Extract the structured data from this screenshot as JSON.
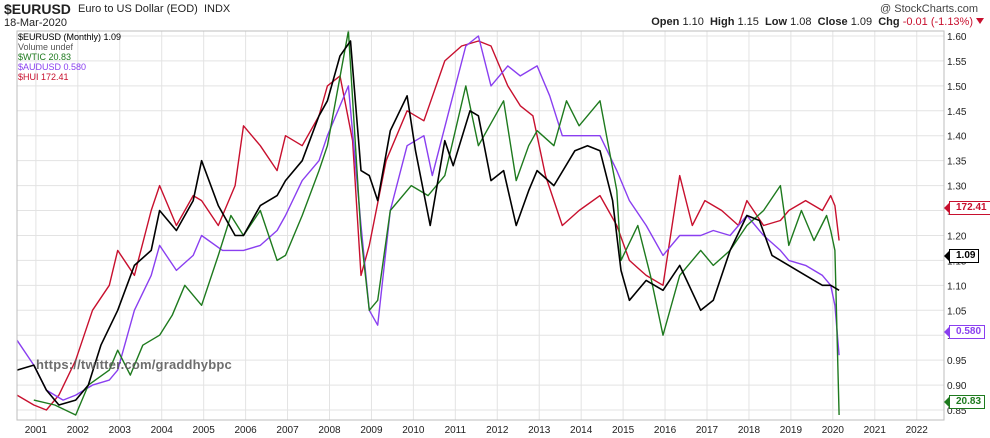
{
  "header": {
    "symbol": "$EURUSD",
    "description": "Euro to US Dollar (EOD)",
    "exchange": "INDX",
    "date": "18-Mar-2020",
    "brand": "@ StockCharts.com",
    "open_label": "Open",
    "open_value": "1.10",
    "high_label": "High",
    "high_value": "1.15",
    "low_label": "Low",
    "low_value": "1.08",
    "close_label": "Close",
    "close_value": "1.09",
    "chg_label": "Chg",
    "chg_value": "-0.01 (-1.13%)"
  },
  "legend": {
    "main": "$EURUSD (Monthly) 1.09",
    "volume": "Volume undef",
    "wtic": "$WTIC 20.83",
    "audusd": "$AUDUSD 0.580",
    "hui": "$HUI 172.41"
  },
  "watermark": "https://twitter.com/graddhybpc",
  "end_tags": {
    "hui": "172.41",
    "eurusd": "1.09",
    "audusd": "0.580",
    "wtic": "20.83"
  },
  "colors": {
    "eurusd": "#000000",
    "wtic": "#1e7a1e",
    "audusd": "#8a3ff0",
    "hui": "#c8102e",
    "grid": "#e3e3e3"
  },
  "chart_data": {
    "type": "line",
    "title": "$EURUSD Euro to US Dollar (EOD) INDX",
    "xlabel": "",
    "ylabel": "",
    "x_ticks": [
      "2001",
      "2002",
      "2003",
      "2004",
      "2005",
      "2006",
      "2007",
      "2008",
      "2009",
      "2010",
      "2011",
      "2012",
      "2013",
      "2014",
      "2015",
      "2016",
      "2017",
      "2018",
      "2019",
      "2020",
      "2021",
      "2022"
    ],
    "y_ticks": [
      0.85,
      0.9,
      0.95,
      1.0,
      1.05,
      1.1,
      1.15,
      1.2,
      1.25,
      1.3,
      1.35,
      1.4,
      1.45,
      1.5,
      1.55,
      1.6
    ],
    "ylim": [
      0.83,
      1.61
    ],
    "xlim": [
      2000.6,
      2022.7
    ],
    "grid": true,
    "series": [
      {
        "name": "$EURUSD (Monthly) 1.09",
        "key": "eurusd",
        "points": [
          [
            2000.6,
            0.93
          ],
          [
            2001.0,
            0.94
          ],
          [
            2001.3,
            0.89
          ],
          [
            2001.6,
            0.86
          ],
          [
            2002.0,
            0.87
          ],
          [
            2002.3,
            0.9
          ],
          [
            2002.6,
            0.98
          ],
          [
            2003.0,
            1.05
          ],
          [
            2003.4,
            1.14
          ],
          [
            2003.8,
            1.17
          ],
          [
            2004.0,
            1.25
          ],
          [
            2004.4,
            1.21
          ],
          [
            2004.8,
            1.27
          ],
          [
            2005.0,
            1.35
          ],
          [
            2005.4,
            1.26
          ],
          [
            2005.8,
            1.2
          ],
          [
            2006.0,
            1.2
          ],
          [
            2006.4,
            1.26
          ],
          [
            2006.8,
            1.28
          ],
          [
            2007.0,
            1.31
          ],
          [
            2007.4,
            1.35
          ],
          [
            2007.8,
            1.44
          ],
          [
            2008.0,
            1.47
          ],
          [
            2008.3,
            1.56
          ],
          [
            2008.55,
            1.59
          ],
          [
            2008.8,
            1.33
          ],
          [
            2009.0,
            1.32
          ],
          [
            2009.2,
            1.27
          ],
          [
            2009.5,
            1.41
          ],
          [
            2009.9,
            1.48
          ],
          [
            2010.1,
            1.37
          ],
          [
            2010.45,
            1.22
          ],
          [
            2010.8,
            1.39
          ],
          [
            2011.0,
            1.34
          ],
          [
            2011.4,
            1.45
          ],
          [
            2011.6,
            1.44
          ],
          [
            2011.9,
            1.31
          ],
          [
            2012.2,
            1.33
          ],
          [
            2012.5,
            1.22
          ],
          [
            2012.8,
            1.29
          ],
          [
            2013.0,
            1.33
          ],
          [
            2013.4,
            1.3
          ],
          [
            2013.9,
            1.37
          ],
          [
            2014.2,
            1.38
          ],
          [
            2014.5,
            1.37
          ],
          [
            2014.8,
            1.27
          ],
          [
            2015.0,
            1.13
          ],
          [
            2015.2,
            1.07
          ],
          [
            2015.6,
            1.11
          ],
          [
            2016.0,
            1.09
          ],
          [
            2016.4,
            1.14
          ],
          [
            2016.9,
            1.05
          ],
          [
            2017.2,
            1.07
          ],
          [
            2017.6,
            1.17
          ],
          [
            2018.0,
            1.24
          ],
          [
            2018.3,
            1.23
          ],
          [
            2018.6,
            1.16
          ],
          [
            2019.0,
            1.14
          ],
          [
            2019.4,
            1.12
          ],
          [
            2019.8,
            1.1
          ],
          [
            2020.0,
            1.1
          ],
          [
            2020.2,
            1.09
          ]
        ]
      },
      {
        "name": "$WTIC 20.83",
        "key": "wtic",
        "points": [
          [
            2001.0,
            0.87
          ],
          [
            2001.5,
            0.86
          ],
          [
            2002.0,
            0.84
          ],
          [
            2002.3,
            0.9
          ],
          [
            2002.8,
            0.93
          ],
          [
            2003.0,
            0.97
          ],
          [
            2003.3,
            0.92
          ],
          [
            2003.6,
            0.98
          ],
          [
            2004.0,
            1.0
          ],
          [
            2004.3,
            1.04
          ],
          [
            2004.6,
            1.1
          ],
          [
            2005.0,
            1.06
          ],
          [
            2005.4,
            1.16
          ],
          [
            2005.7,
            1.24
          ],
          [
            2006.0,
            1.2
          ],
          [
            2006.4,
            1.25
          ],
          [
            2006.8,
            1.15
          ],
          [
            2007.0,
            1.16
          ],
          [
            2007.4,
            1.24
          ],
          [
            2007.8,
            1.33
          ],
          [
            2008.0,
            1.38
          ],
          [
            2008.5,
            1.61
          ],
          [
            2008.8,
            1.2
          ],
          [
            2009.0,
            1.05
          ],
          [
            2009.2,
            1.07
          ],
          [
            2009.5,
            1.25
          ],
          [
            2010.0,
            1.3
          ],
          [
            2010.4,
            1.28
          ],
          [
            2010.8,
            1.32
          ],
          [
            2011.3,
            1.5
          ],
          [
            2011.6,
            1.38
          ],
          [
            2012.0,
            1.44
          ],
          [
            2012.2,
            1.47
          ],
          [
            2012.5,
            1.31
          ],
          [
            2012.8,
            1.38
          ],
          [
            2013.0,
            1.41
          ],
          [
            2013.4,
            1.38
          ],
          [
            2013.7,
            1.47
          ],
          [
            2014.0,
            1.42
          ],
          [
            2014.5,
            1.47
          ],
          [
            2014.9,
            1.29
          ],
          [
            2015.0,
            1.15
          ],
          [
            2015.4,
            1.22
          ],
          [
            2015.7,
            1.12
          ],
          [
            2016.0,
            1.0
          ],
          [
            2016.4,
            1.12
          ],
          [
            2016.9,
            1.17
          ],
          [
            2017.2,
            1.14
          ],
          [
            2017.6,
            1.17
          ],
          [
            2018.0,
            1.22
          ],
          [
            2018.4,
            1.25
          ],
          [
            2018.8,
            1.3
          ],
          [
            2019.0,
            1.18
          ],
          [
            2019.3,
            1.25
          ],
          [
            2019.6,
            1.19
          ],
          [
            2019.9,
            1.24
          ],
          [
            2020.0,
            1.21
          ],
          [
            2020.1,
            1.17
          ],
          [
            2020.2,
            0.84
          ]
        ]
      },
      {
        "name": "$AUDUSD 0.580",
        "key": "audusd",
        "points": [
          [
            2000.6,
            0.99
          ],
          [
            2001.0,
            0.94
          ],
          [
            2001.3,
            0.89
          ],
          [
            2001.7,
            0.87
          ],
          [
            2002.0,
            0.88
          ],
          [
            2002.4,
            0.9
          ],
          [
            2002.8,
            0.91
          ],
          [
            2003.0,
            0.93
          ],
          [
            2003.4,
            1.05
          ],
          [
            2003.8,
            1.12
          ],
          [
            2004.0,
            1.18
          ],
          [
            2004.4,
            1.13
          ],
          [
            2004.8,
            1.16
          ],
          [
            2005.0,
            1.2
          ],
          [
            2005.5,
            1.17
          ],
          [
            2006.0,
            1.17
          ],
          [
            2006.4,
            1.18
          ],
          [
            2006.8,
            1.21
          ],
          [
            2007.0,
            1.24
          ],
          [
            2007.4,
            1.31
          ],
          [
            2007.8,
            1.35
          ],
          [
            2008.0,
            1.4
          ],
          [
            2008.5,
            1.5
          ],
          [
            2008.8,
            1.22
          ],
          [
            2009.0,
            1.05
          ],
          [
            2009.2,
            1.02
          ],
          [
            2009.5,
            1.25
          ],
          [
            2009.9,
            1.38
          ],
          [
            2010.3,
            1.4
          ],
          [
            2010.5,
            1.32
          ],
          [
            2010.9,
            1.45
          ],
          [
            2011.3,
            1.58
          ],
          [
            2011.6,
            1.6
          ],
          [
            2011.9,
            1.5
          ],
          [
            2012.3,
            1.54
          ],
          [
            2012.6,
            1.52
          ],
          [
            2013.0,
            1.54
          ],
          [
            2013.3,
            1.48
          ],
          [
            2013.6,
            1.4
          ],
          [
            2014.0,
            1.4
          ],
          [
            2014.5,
            1.4
          ],
          [
            2014.9,
            1.33
          ],
          [
            2015.2,
            1.27
          ],
          [
            2015.6,
            1.22
          ],
          [
            2016.0,
            1.16
          ],
          [
            2016.4,
            1.2
          ],
          [
            2016.9,
            1.2
          ],
          [
            2017.2,
            1.21
          ],
          [
            2017.6,
            1.2
          ],
          [
            2018.0,
            1.24
          ],
          [
            2018.4,
            1.2
          ],
          [
            2018.8,
            1.17
          ],
          [
            2019.0,
            1.15
          ],
          [
            2019.4,
            1.14
          ],
          [
            2019.8,
            1.12
          ],
          [
            2020.0,
            1.1
          ],
          [
            2020.1,
            1.06
          ],
          [
            2020.2,
            0.96
          ]
        ]
      },
      {
        "name": "$HUI 172.41",
        "key": "hui",
        "points": [
          [
            2000.6,
            0.88
          ],
          [
            2001.0,
            0.86
          ],
          [
            2001.3,
            0.85
          ],
          [
            2001.6,
            0.88
          ],
          [
            2002.0,
            0.95
          ],
          [
            2002.4,
            1.05
          ],
          [
            2002.8,
            1.1
          ],
          [
            2003.0,
            1.17
          ],
          [
            2003.4,
            1.12
          ],
          [
            2003.8,
            1.25
          ],
          [
            2004.0,
            1.3
          ],
          [
            2004.4,
            1.22
          ],
          [
            2004.8,
            1.28
          ],
          [
            2005.0,
            1.27
          ],
          [
            2005.4,
            1.22
          ],
          [
            2005.8,
            1.3
          ],
          [
            2006.0,
            1.42
          ],
          [
            2006.4,
            1.38
          ],
          [
            2006.8,
            1.33
          ],
          [
            2007.0,
            1.4
          ],
          [
            2007.4,
            1.38
          ],
          [
            2007.8,
            1.44
          ],
          [
            2008.0,
            1.5
          ],
          [
            2008.3,
            1.52
          ],
          [
            2008.6,
            1.39
          ],
          [
            2008.8,
            1.12
          ],
          [
            2009.0,
            1.18
          ],
          [
            2009.4,
            1.35
          ],
          [
            2009.9,
            1.45
          ],
          [
            2010.3,
            1.43
          ],
          [
            2010.8,
            1.55
          ],
          [
            2011.2,
            1.58
          ],
          [
            2011.6,
            1.59
          ],
          [
            2011.9,
            1.58
          ],
          [
            2012.3,
            1.5
          ],
          [
            2012.6,
            1.46
          ],
          [
            2012.9,
            1.44
          ],
          [
            2013.2,
            1.32
          ],
          [
            2013.6,
            1.22
          ],
          [
            2014.0,
            1.25
          ],
          [
            2014.5,
            1.28
          ],
          [
            2014.9,
            1.22
          ],
          [
            2015.2,
            1.15
          ],
          [
            2015.6,
            1.12
          ],
          [
            2016.0,
            1.1
          ],
          [
            2016.4,
            1.32
          ],
          [
            2016.7,
            1.22
          ],
          [
            2017.0,
            1.27
          ],
          [
            2017.4,
            1.25
          ],
          [
            2017.8,
            1.22
          ],
          [
            2018.0,
            1.27
          ],
          [
            2018.4,
            1.22
          ],
          [
            2018.8,
            1.23
          ],
          [
            2019.0,
            1.25
          ],
          [
            2019.4,
            1.27
          ],
          [
            2019.8,
            1.25
          ],
          [
            2020.0,
            1.28
          ],
          [
            2020.1,
            1.26
          ],
          [
            2020.2,
            1.19
          ]
        ]
      }
    ]
  }
}
